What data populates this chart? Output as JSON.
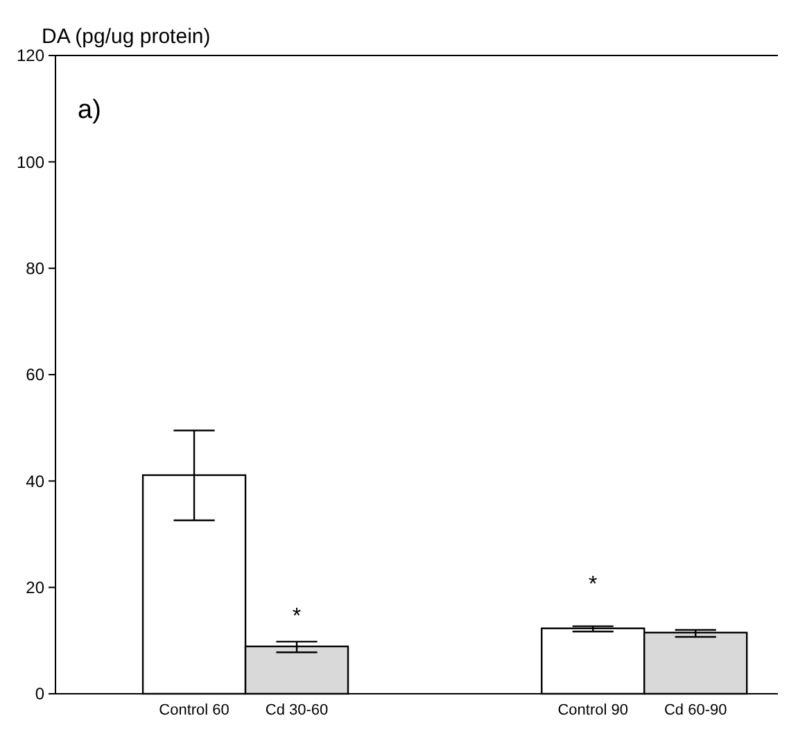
{
  "chart_data": {
    "type": "bar",
    "ylabel": "DA (pg/ug protein)",
    "categories": [
      "Control 60",
      "Cd 30-60",
      "Control 90",
      "Cd 60-90"
    ],
    "values": [
      41.1,
      8.9,
      12.3,
      11.5
    ],
    "colors": [
      "#ffffff",
      "#d9d9d9",
      "#ffffff",
      "#d9d9d9"
    ],
    "errors": [
      [
        32.6,
        49.5
      ],
      [
        7.8,
        9.8
      ],
      [
        11.7,
        12.7
      ],
      [
        10.7,
        12.0
      ]
    ],
    "ylim": [
      0,
      120
    ],
    "yticks": [
      0,
      20,
      40,
      60,
      80,
      100,
      120
    ],
    "annotations": [
      "a)",
      "*",
      "*"
    ]
  }
}
